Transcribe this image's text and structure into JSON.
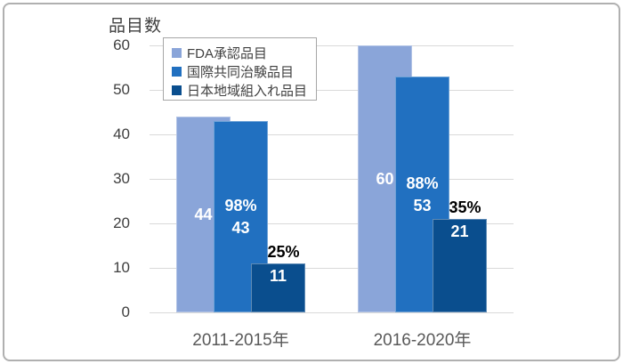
{
  "chart_data": {
    "type": "bar",
    "title": "",
    "ylabel": "品目数",
    "xlabel": "",
    "categories": [
      "2011-2015年",
      "2016-2020年"
    ],
    "yticks": [
      0,
      10,
      20,
      30,
      40,
      50,
      60
    ],
    "ylim": [
      0,
      60
    ],
    "grid": true,
    "bar_style": "overlapped",
    "legend_position": "top-left-inside",
    "colors": {
      "grid": "#d9d9d9",
      "axis_text": "#404040",
      "category_text": "#595959",
      "in_bar_label": "#ffffff",
      "outside_label": "#000000"
    },
    "series": [
      {
        "key": "fda-approved",
        "name": "FDA承認品目",
        "color": "#8aa5d9",
        "values": [
          44,
          60
        ],
        "bar_labels": [
          [
            "44"
          ],
          [
            "60"
          ]
        ],
        "label_position": "center"
      },
      {
        "key": "global-trial",
        "name": "国際共同治験品目",
        "color": "#2170c0",
        "values": [
          43,
          53
        ],
        "bar_labels": [
          [
            "98%",
            "43"
          ],
          [
            "88%",
            "53"
          ]
        ],
        "label_position": "center"
      },
      {
        "key": "japan-inclusion",
        "name": "日本地域組入れ品目",
        "color": "#0a4e8e",
        "values": [
          11,
          21
        ],
        "bar_labels": [
          [
            "11"
          ],
          [
            "21"
          ]
        ],
        "outside_labels": [
          "25%",
          "35%"
        ],
        "label_position": "inside-end"
      }
    ]
  }
}
